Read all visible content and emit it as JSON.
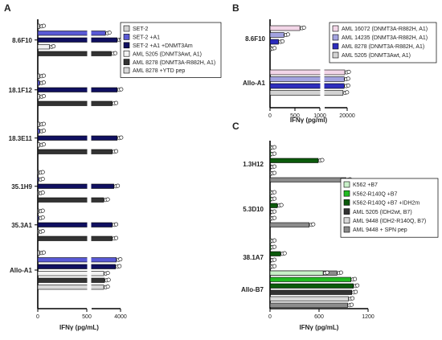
{
  "chart_data": [
    {
      "panel": "A",
      "type": "bar",
      "orientation": "horizontal",
      "xlabel": "IFNγ (pg/mL)",
      "xticks": [
        "0",
        "500",
        "4000"
      ],
      "axis_break": [
        500,
        550
      ],
      "xlim": [
        0,
        4000
      ],
      "legend_position": "top-right",
      "legend": [
        {
          "name": "SET-2",
          "color": "#d3d3d3"
        },
        {
          "name": "SET-2 +A1",
          "color": "#5a5ad6"
        },
        {
          "name": "SET-2 +A1 +DNMT3Am",
          "color": "#101060"
        },
        {
          "name": "AML 5205 (DNMT3Awt, A1)",
          "color": "#f2f2f2"
        },
        {
          "name": "AML 8278 (DNMT3A-R882H, A1)",
          "color": "#333333"
        },
        {
          "name": "AML 8278 +YTD pep",
          "color": "#d9d9d9"
        }
      ],
      "categories": [
        "8.6F10",
        "18.1F12",
        "18.3E11",
        "35.1H9",
        "35.3A1",
        "Allo-A1"
      ],
      "groups": [
        {
          "category": "8.6F10",
          "bars": [
            {
              "series": "SET-2",
              "value": 20
            },
            {
              "series": "SET-2 +A1",
              "value": 2200
            },
            {
              "series": "SET-2 +A1 +DNMT3Am",
              "value": 3600
            },
            {
              "series": "AML 5205 (DNMT3Awt, A1)",
              "value": 120
            },
            {
              "series": "AML 8278 (DNMT3A-R882H, A1)",
              "value": 2900
            }
          ]
        },
        {
          "category": "18.1F12",
          "bars": [
            {
              "series": "SET-2",
              "value": 20
            },
            {
              "series": "SET-2 +A1",
              "value": 20
            },
            {
              "series": "SET-2 +A1 +DNMT3Am",
              "value": 3600
            },
            {
              "series": "AML 5205 (DNMT3Awt, A1)",
              "value": 20
            },
            {
              "series": "AML 8278 (DNMT3A-R882H, A1)",
              "value": 3000
            }
          ]
        },
        {
          "category": "18.3E11",
          "bars": [
            {
              "series": "SET-2",
              "value": 20
            },
            {
              "series": "SET-2 +A1",
              "value": 20
            },
            {
              "series": "SET-2 +A1 +DNMT3Am",
              "value": 3600
            },
            {
              "series": "AML 5205 (DNMT3Awt, A1)",
              "value": 20
            },
            {
              "series": "AML 8278 (DNMT3A-R882H, A1)",
              "value": 3000
            }
          ]
        },
        {
          "category": "35.1H9",
          "bars": [
            {
              "series": "SET-2",
              "value": 10
            },
            {
              "series": "SET-2 +A1",
              "value": 10
            },
            {
              "series": "SET-2 +A1 +DNMT3Am",
              "value": 3200
            },
            {
              "series": "AML 5205 (DNMT3Awt, A1)",
              "value": 10
            },
            {
              "series": "AML 8278 (DNMT3A-R882H, A1)",
              "value": 2000
            }
          ]
        },
        {
          "category": "35.3A1",
          "bars": [
            {
              "series": "SET-2",
              "value": 10
            },
            {
              "series": "SET-2 +A1",
              "value": 10
            },
            {
              "series": "SET-2 +A1 +DNMT3Am",
              "value": 3000
            },
            {
              "series": "AML 5205 (DNMT3Awt, A1)",
              "value": 10
            },
            {
              "series": "AML 8278 (DNMT3A-R882H, A1)",
              "value": 3000
            }
          ]
        },
        {
          "category": "Allo-A1",
          "bars": [
            {
              "series": "SET-2",
              "value": 20
            },
            {
              "series": "SET-2 +A1",
              "value": 3500
            },
            {
              "series": "SET-2 +A1 +DNMT3Am",
              "value": 3400
            },
            {
              "series": "AML 5205 (DNMT3Awt, A1)",
              "value": 2000
            },
            {
              "series": "AML 8278 (DNMT3A-R882H, A1)",
              "value": 2100
            },
            {
              "series": "AML 8278 +YTD pep",
              "value": 2000
            }
          ]
        }
      ]
    },
    {
      "panel": "B",
      "type": "bar",
      "orientation": "horizontal",
      "xlabel": "IFNγ (pg/ml)",
      "xticks": [
        "0",
        "500",
        "1000",
        "20000"
      ],
      "axis_break": [
        1000,
        1050
      ],
      "xlim": [
        0,
        20000
      ],
      "legend_position": "top-right",
      "legend": [
        {
          "name": "AML 16072 (DNMT3A-R882H, A1)",
          "color": "#f3d6e8"
        },
        {
          "name": "AML 14235 (DNMT3A-R882H, A1)",
          "color": "#a3a3e0"
        },
        {
          "name": "AML 8278 (DNMT3A-R882H, A1)",
          "color": "#2d2dbd"
        },
        {
          "name": "AML 5205 (DNMT3Awt, A1)",
          "color": "#d3d3d3"
        }
      ],
      "categories": [
        "8.6F10",
        "Allo-A1"
      ],
      "groups": [
        {
          "category": "8.6F10",
          "bars": [
            {
              "series": "AML 16072 (DNMT3A-R882H, A1)",
              "value": 600
            },
            {
              "series": "AML 14235 (DNMT3A-R882H, A1)",
              "value": 280
            },
            {
              "series": "AML 8278 (DNMT3A-R882H, A1)",
              "value": 170
            },
            {
              "series": "AML 5205 (DNMT3Awt, A1)",
              "value": 10
            }
          ]
        },
        {
          "category": "Allo-A1",
          "bars": [
            {
              "series": "AML 16072 (DNMT3A-R882H, A1)",
              "value": 18000
            },
            {
              "series": "AML 14235 (DNMT3A-R882H, A1)",
              "value": 17500
            },
            {
              "series": "AML 8278 (DNMT3A-R882H, A1)",
              "value": 17500
            },
            {
              "series": "AML 5205 (DNMT3Awt, A1)",
              "value": 16500
            }
          ]
        }
      ]
    },
    {
      "panel": "C",
      "type": "bar",
      "orientation": "horizontal",
      "xlabel": "IFNγ (pg/mL)",
      "xticks": [
        "0",
        "600",
        "1200"
      ],
      "xlim": [
        0,
        1200
      ],
      "legend_position": "right",
      "legend": [
        {
          "name": "K562 +B7",
          "color": "#c8f0c8"
        },
        {
          "name": "K562-R140Q +B7",
          "color": "#22bb22"
        },
        {
          "name": "K562-R140Q +B7 +IDH2m",
          "color": "#0b5a0b"
        },
        {
          "name": "AML 5205 (IDH2wt, B7)",
          "color": "#333333"
        },
        {
          "name": "AML 9448 (IDH2-R140Q, B7)",
          "color": "#d9d9d9"
        },
        {
          "name": "AML 9448 + SPN pep",
          "color": "#8c8c8c"
        }
      ],
      "categories": [
        "1.3H12",
        "5.3D10",
        "38.1A7",
        "Allo-B7"
      ],
      "groups": [
        {
          "category": "1.3H12",
          "bars": [
            {
              "series": "K562 +B7",
              "value": 5
            },
            {
              "series": "K562-R140Q +B7",
              "value": 5
            },
            {
              "series": "K562-R140Q +B7 +IDH2m",
              "value": 590
            },
            {
              "series": "AML 5205 (IDH2wt, B7)",
              "value": 5
            },
            {
              "series": "AML 9448 (IDH2-R140Q, B7)",
              "value": 5
            },
            {
              "series": "AML 9448 + SPN pep",
              "value": 930
            }
          ]
        },
        {
          "category": "5.3D10",
          "bars": [
            {
              "series": "K562 +B7",
              "value": 5
            },
            {
              "series": "K562-R140Q +B7",
              "value": 5
            },
            {
              "series": "K562-R140Q +B7 +IDH2m",
              "value": 90
            },
            {
              "series": "AML 5205 (IDH2wt, B7)",
              "value": 5
            },
            {
              "series": "AML 9448 (IDH2-R140Q, B7)",
              "value": 5
            },
            {
              "series": "AML 9448 + SPN pep",
              "value": 480
            }
          ]
        },
        {
          "category": "38.1A7",
          "bars": [
            {
              "series": "K562 +B7",
              "value": 5
            },
            {
              "series": "K562-R140Q +B7",
              "value": 5
            },
            {
              "series": "K562-R140Q +B7 +IDH2m",
              "value": 130
            },
            {
              "series": "AML 5205 (IDH2wt, B7)",
              "value": 5
            },
            {
              "series": "AML 9448 (IDH2-R140Q, B7)",
              "value": 5
            },
            {
              "series": "AML 9448 + SPN pep",
              "value": 820
            }
          ]
        },
        {
          "category": "Allo-B7",
          "bars": [
            {
              "series": "K562 +B7",
              "value": 650
            },
            {
              "series": "K562-R140Q +B7",
              "value": 990
            },
            {
              "series": "K562-R140Q +B7 +IDH2m",
              "value": 1020
            },
            {
              "series": "AML 5205 (IDH2wt, B7)",
              "value": 1000
            },
            {
              "series": "AML 9448 (IDH2-R140Q, B7)",
              "value": 960
            },
            {
              "series": "AML 9448 + SPN pep",
              "value": 950
            }
          ]
        }
      ]
    }
  ]
}
